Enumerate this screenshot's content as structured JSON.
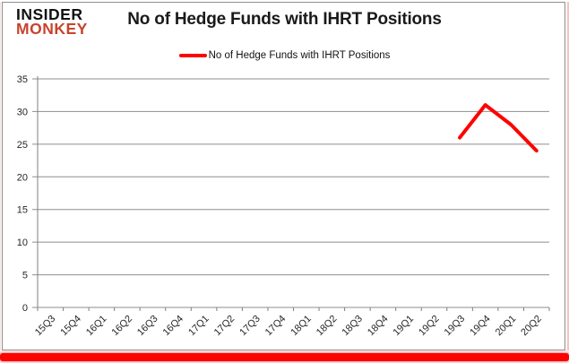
{
  "brand": {
    "line1": "INSIDER",
    "line2": "MONKEY",
    "color": "#c7442c"
  },
  "title": "No of Hedge Funds with IHRT Positions",
  "legend": {
    "label": "No of Hedge Funds with IHRT Positions",
    "color": "#ff0000"
  },
  "chart_data": {
    "type": "line",
    "title": "No of Hedge Funds with IHRT Positions",
    "categories": [
      "15Q3",
      "15Q4",
      "16Q1",
      "16Q2",
      "16Q3",
      "16Q4",
      "17Q1",
      "17Q2",
      "17Q3",
      "17Q4",
      "18Q1",
      "18Q2",
      "18Q3",
      "18Q4",
      "19Q1",
      "19Q2",
      "19Q3",
      "19Q4",
      "20Q1",
      "20Q2"
    ],
    "series": [
      {
        "name": "No of Hedge Funds with IHRT Positions",
        "color": "#ff0000",
        "values": [
          null,
          null,
          null,
          null,
          null,
          null,
          null,
          null,
          null,
          null,
          null,
          null,
          null,
          null,
          null,
          null,
          26,
          31,
          28,
          24
        ]
      }
    ],
    "ylim": [
      0,
      35
    ],
    "ytick_step": 5,
    "grid": true,
    "grid_color": "#8e8e8e",
    "axis_color": "#7f7f7f",
    "legend_position": "top-center",
    "xlabel": "",
    "ylabel": ""
  }
}
